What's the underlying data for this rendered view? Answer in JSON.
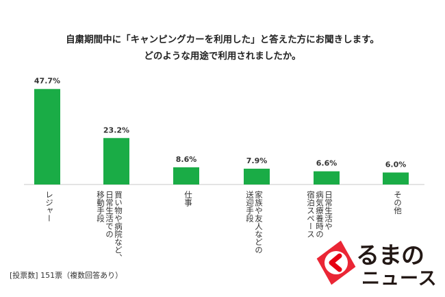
{
  "chart_data": {
    "type": "bar",
    "title_lines": [
      "自粛期間中に「キャンピングカーを利用した」と答えた方にお聞きします。",
      "どのような用途で利用されましたか。"
    ],
    "categories": [
      "レジャー",
      "買い物や病院など、日常生活での移動手段",
      "仕事",
      "家族や友人などの送迎手段",
      "日常生活や病気療養時の宿泊スペース",
      "その他"
    ],
    "category_label_columns": [
      [
        "レジャー"
      ],
      [
        "買い物や病院など、",
        "日常生活での",
        "移動手段"
      ],
      [
        "仕事"
      ],
      [
        "家族や友人などの",
        "送迎手段"
      ],
      [
        "日常生活や",
        "病気療養時の",
        "宿泊スペース"
      ],
      [
        "その他"
      ]
    ],
    "values": [
      47.7,
      23.2,
      8.6,
      7.9,
      6.6,
      6.0
    ],
    "value_labels": [
      "47.7%",
      "23.2%",
      "8.6%",
      "7.9%",
      "6.6%",
      "6.0%"
    ],
    "ylim": [
      0,
      50
    ],
    "grid": false,
    "legend": "none",
    "bar_color": "#1aac46"
  },
  "footer": "[投票数] 151票（複数回答あり）",
  "logo": {
    "line1": "るまの",
    "line2": "ニュース",
    "accent_color": "#e60012"
  }
}
